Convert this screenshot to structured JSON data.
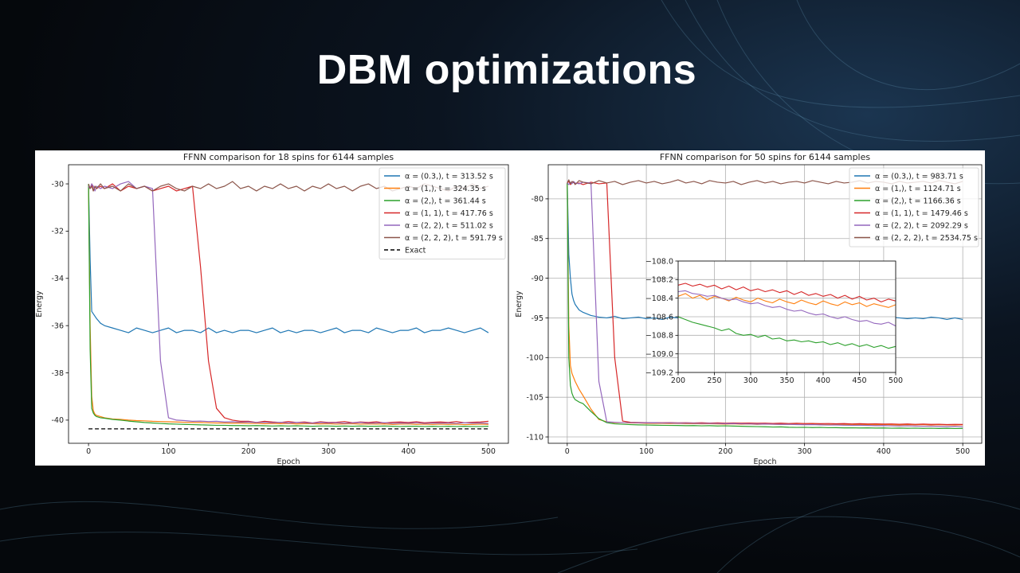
{
  "slide_title": "DBM optimizations",
  "chart_data": [
    {
      "type": "line",
      "title": "FFNN comparison for 18 spins for 6144 samples",
      "xlabel": "Epoch",
      "ylabel": "Energy",
      "xlim": [
        -25,
        525
      ],
      "ylim": [
        -40.98,
        -29.19
      ],
      "xticks": [
        0,
        100,
        200,
        300,
        400,
        500
      ],
      "yticks": [
        -40,
        -38,
        -36,
        -34,
        -32,
        -30
      ],
      "grid": false,
      "legend": "upper right",
      "x": [
        0,
        2,
        4,
        6,
        8,
        10,
        15,
        20,
        30,
        40,
        50,
        60,
        70,
        80,
        90,
        100,
        110,
        120,
        130,
        140,
        150,
        160,
        170,
        180,
        190,
        200,
        210,
        220,
        230,
        240,
        250,
        260,
        270,
        280,
        290,
        300,
        310,
        320,
        330,
        340,
        350,
        360,
        370,
        380,
        390,
        400,
        410,
        420,
        430,
        440,
        450,
        460,
        470,
        480,
        490,
        500
      ],
      "series": [
        {
          "name": "α = (0.3,), t = 313.52 s",
          "color": "#1f77b4",
          "values": [
            -30.0,
            -33.2,
            -35.4,
            -35.5,
            -35.6,
            -35.7,
            -35.9,
            -36.0,
            -36.1,
            -36.2,
            -36.3,
            -36.1,
            -36.2,
            -36.3,
            -36.2,
            -36.1,
            -36.3,
            -36.2,
            -36.2,
            -36.3,
            -36.1,
            -36.3,
            -36.2,
            -36.3,
            -36.2,
            -36.2,
            -36.3,
            -36.2,
            -36.1,
            -36.3,
            -36.2,
            -36.3,
            -36.2,
            -36.2,
            -36.3,
            -36.2,
            -36.1,
            -36.3,
            -36.2,
            -36.2,
            -36.3,
            -36.1,
            -36.2,
            -36.3,
            -36.2,
            -36.2,
            -36.1,
            -36.3,
            -36.2,
            -36.2,
            -36.1,
            -36.2,
            -36.3,
            -36.2,
            -36.1,
            -36.3
          ]
        },
        {
          "name": "α = (1,), t = 324.35 s",
          "color": "#ff7f0e",
          "values": [
            -30.0,
            -36.0,
            -39.0,
            -39.6,
            -39.75,
            -39.8,
            -39.85,
            -39.9,
            -39.95,
            -39.97,
            -40.0,
            -40.02,
            -40.03,
            -40.05,
            -40.06,
            -40.07,
            -40.08,
            -40.09,
            -40.1,
            -40.1,
            -40.11,
            -40.12,
            -40.12,
            -40.13,
            -40.12,
            -40.14,
            -40.13,
            -40.15,
            -40.14,
            -40.15,
            -40.14,
            -40.16,
            -40.15,
            -40.15,
            -40.16,
            -40.15,
            -40.17,
            -40.16,
            -40.15,
            -40.17,
            -40.16,
            -40.17,
            -40.16,
            -40.18,
            -40.17,
            -40.16,
            -40.18,
            -40.17,
            -40.18,
            -40.17,
            -40.18,
            -40.17,
            -40.19,
            -40.18,
            -40.17,
            -40.18
          ]
        },
        {
          "name": "α = (2,), t = 361.44 s",
          "color": "#2ca02c",
          "values": [
            -30.0,
            -37.0,
            -39.5,
            -39.7,
            -39.8,
            -39.85,
            -39.9,
            -39.92,
            -39.97,
            -40.0,
            -40.04,
            -40.07,
            -40.1,
            -40.12,
            -40.14,
            -40.16,
            -40.17,
            -40.18,
            -40.19,
            -40.2,
            -40.21,
            -40.22,
            -40.22,
            -40.23,
            -40.23,
            -40.24,
            -40.23,
            -40.24,
            -40.25,
            -40.24,
            -40.25,
            -40.24,
            -40.25,
            -40.26,
            -40.25,
            -40.25,
            -40.26,
            -40.25,
            -40.26,
            -40.25,
            -40.26,
            -40.26,
            -40.25,
            -40.26,
            -40.27,
            -40.26,
            -40.26,
            -40.27,
            -40.26,
            -40.27,
            -40.26,
            -40.27,
            -40.26,
            -40.27,
            -40.27,
            -40.26
          ]
        },
        {
          "name": "α = (1, 1), t = 417.76 s",
          "color": "#d62728",
          "values": [
            -30.1,
            -30.2,
            -30.0,
            -30.3,
            -30.1,
            -30.2,
            -30.1,
            -30.2,
            -30.0,
            -30.3,
            -30.1,
            -30.2,
            -30.1,
            -30.3,
            -30.2,
            -30.1,
            -30.3,
            -30.2,
            -30.1,
            -33.5,
            -37.5,
            -39.5,
            -39.9,
            -40.0,
            -40.05,
            -40.05,
            -40.1,
            -40.05,
            -40.08,
            -40.1,
            -40.06,
            -40.1,
            -40.08,
            -40.12,
            -40.07,
            -40.1,
            -40.09,
            -40.06,
            -40.11,
            -40.08,
            -40.1,
            -40.07,
            -40.12,
            -40.09,
            -40.08,
            -40.1,
            -40.07,
            -40.11,
            -40.09,
            -40.08,
            -40.1,
            -40.06,
            -40.11,
            -40.09,
            -40.08,
            -40.05
          ]
        },
        {
          "name": "α = (2, 2), t = 511.02 s",
          "color": "#9467bd",
          "values": [
            -30.1,
            -30.2,
            -30.0,
            -30.1,
            -30.3,
            -30.1,
            -30.2,
            -30.1,
            -30.2,
            -30.0,
            -29.9,
            -30.2,
            -30.1,
            -30.2,
            -37.5,
            -39.9,
            -40.0,
            -40.02,
            -40.05,
            -40.04,
            -40.06,
            -40.05,
            -40.08,
            -40.07,
            -40.09,
            -40.08,
            -40.1,
            -40.09,
            -40.11,
            -40.09,
            -40.12,
            -40.1,
            -40.11,
            -40.13,
            -40.1,
            -40.12,
            -40.11,
            -40.13,
            -40.12,
            -40.1,
            -40.13,
            -40.12,
            -40.11,
            -40.14,
            -40.12,
            -40.13,
            -40.11,
            -40.14,
            -40.12,
            -40.13,
            -40.12,
            -40.14,
            -40.11,
            -40.13,
            -40.12,
            -40.14
          ]
        },
        {
          "name": "α = (2, 2, 2), t = 591.79 s",
          "color": "#8c564b",
          "values": [
            -30.0,
            -30.2,
            -30.1,
            -30.3,
            -30.1,
            -30.2,
            -30.0,
            -30.2,
            -30.1,
            -30.3,
            -30.0,
            -30.2,
            -30.1,
            -30.3,
            -30.1,
            -30.0,
            -30.2,
            -30.3,
            -30.1,
            -30.2,
            -30.0,
            -30.2,
            -30.1,
            -29.9,
            -30.2,
            -30.1,
            -30.3,
            -30.1,
            -30.2,
            -30.0,
            -30.2,
            -30.1,
            -30.3,
            -30.1,
            -30.2,
            -30.0,
            -30.2,
            -30.1,
            -30.3,
            -30.1,
            -30.0,
            -30.2,
            -30.1,
            -30.3,
            -30.2,
            -30.1,
            -30.2,
            -30.0,
            -30.1,
            -30.2,
            -30.3,
            -30.1,
            -30.2,
            -30.0,
            -30.2,
            -30.1
          ]
        },
        {
          "name": "Exact",
          "color": "#000000",
          "dash": true,
          "x": [
            0,
            500
          ],
          "values": [
            -40.37,
            -40.37
          ]
        }
      ]
    },
    {
      "type": "line",
      "title": "FFNN comparison for 50 spins for 6144 samples",
      "xlabel": "Epoch",
      "ylabel": "Energy",
      "xlim": [
        -24,
        524
      ],
      "ylim": [
        -110.8,
        -75.7
      ],
      "xticks": [
        0,
        100,
        200,
        300,
        400,
        500
      ],
      "yticks": [
        -110,
        -105,
        -100,
        -95,
        -90,
        -85,
        -80
      ],
      "grid": true,
      "legend": "upper right",
      "x": [
        0,
        2,
        4,
        6,
        8,
        10,
        15,
        20,
        30,
        40,
        50,
        60,
        70,
        80,
        90,
        100,
        110,
        120,
        130,
        140,
        150,
        160,
        170,
        180,
        190,
        200,
        210,
        220,
        230,
        240,
        250,
        260,
        270,
        280,
        290,
        300,
        310,
        320,
        330,
        340,
        350,
        360,
        370,
        380,
        390,
        400,
        410,
        420,
        430,
        440,
        450,
        460,
        470,
        480,
        490,
        500
      ],
      "series": [
        {
          "name": "α = (0.3,), t = 983.71 s",
          "color": "#1f77b4",
          "values": [
            -78.0,
            -87.0,
            -90.0,
            -92.0,
            -92.8,
            -93.3,
            -94.0,
            -94.3,
            -94.7,
            -94.9,
            -95.0,
            -94.8,
            -95.1,
            -95.0,
            -94.9,
            -95.1,
            -95.0,
            -95.2,
            -94.9,
            -95.0,
            -95.1,
            -95.0,
            -94.9,
            -95.1,
            -95.0,
            -95.2,
            -95.0,
            -94.9,
            -95.1,
            -95.0,
            -95.1,
            -94.9,
            -95.0,
            -95.2,
            -95.0,
            -95.1,
            -94.9,
            -95.0,
            -95.1,
            -95.0,
            -94.9,
            -95.1,
            -95.0,
            -95.2,
            -95.0,
            -95.1,
            -94.9,
            -95.0,
            -95.1,
            -95.0,
            -95.1,
            -94.9,
            -95.0,
            -95.2,
            -95.0,
            -95.2
          ]
        },
        {
          "name": "α = (1,), t = 1124.71 s",
          "color": "#ff7f0e",
          "values": [
            -78.0,
            -96.0,
            -101.0,
            -102.0,
            -102.5,
            -103.0,
            -104.0,
            -104.8,
            -106.5,
            -107.8,
            -108.1,
            -108.2,
            -108.2,
            -108.25,
            -108.25,
            -108.3,
            -108.28,
            -108.3,
            -108.32,
            -108.3,
            -108.33,
            -108.32,
            -108.35,
            -108.33,
            -108.36,
            -108.38,
            -108.35,
            -108.4,
            -108.37,
            -108.42,
            -108.38,
            -108.4,
            -108.43,
            -108.39,
            -108.42,
            -108.44,
            -108.4,
            -108.43,
            -108.45,
            -108.41,
            -108.44,
            -108.46,
            -108.42,
            -108.45,
            -108.47,
            -108.43,
            -108.46,
            -108.48,
            -108.44,
            -108.47,
            -108.45,
            -108.49,
            -108.46,
            -108.48,
            -108.5,
            -108.47
          ]
        },
        {
          "name": "α = (2,), t = 1166.36 s",
          "color": "#2ca02c",
          "values": [
            -78.0,
            -100.0,
            -103.5,
            -104.5,
            -105.0,
            -105.3,
            -105.6,
            -105.8,
            -106.8,
            -107.7,
            -108.2,
            -108.35,
            -108.4,
            -108.45,
            -108.48,
            -108.5,
            -108.52,
            -108.54,
            -108.55,
            -108.56,
            -108.58,
            -108.57,
            -108.6,
            -108.58,
            -108.62,
            -108.6,
            -108.63,
            -108.66,
            -108.68,
            -108.7,
            -108.72,
            -108.75,
            -108.73,
            -108.78,
            -108.8,
            -108.79,
            -108.82,
            -108.8,
            -108.84,
            -108.83,
            -108.86,
            -108.85,
            -108.87,
            -108.86,
            -108.88,
            -108.87,
            -108.9,
            -108.88,
            -108.91,
            -108.89,
            -108.92,
            -108.9,
            -108.93,
            -108.91,
            -108.94,
            -108.92
          ]
        },
        {
          "name": "α = (1, 1), t = 1479.46 s",
          "color": "#d62728",
          "values": [
            -78.0,
            -77.8,
            -78.2,
            -78.0,
            -77.9,
            -78.1,
            -78.0,
            -78.2,
            -77.9,
            -78.1,
            -78.0,
            -100.0,
            -108.0,
            -108.15,
            -108.18,
            -108.2,
            -108.2,
            -108.22,
            -108.2,
            -108.23,
            -108.22,
            -108.24,
            -108.22,
            -108.25,
            -108.23,
            -108.26,
            -108.24,
            -108.27,
            -108.25,
            -108.28,
            -108.26,
            -108.3,
            -108.27,
            -108.31,
            -108.28,
            -108.32,
            -108.3,
            -108.33,
            -108.31,
            -108.34,
            -108.32,
            -108.36,
            -108.33,
            -108.37,
            -108.35,
            -108.38,
            -108.36,
            -108.4,
            -108.37,
            -108.41,
            -108.38,
            -108.42,
            -108.4,
            -108.44,
            -108.41,
            -108.43
          ]
        },
        {
          "name": "α = (2, 2), t = 2092.29 s",
          "color": "#9467bd",
          "values": [
            -78.0,
            -78.2,
            -77.9,
            -78.1,
            -77.8,
            -78.0,
            -78.1,
            -77.9,
            -78.0,
            -103.0,
            -108.1,
            -108.15,
            -108.2,
            -108.2,
            -108.22,
            -108.23,
            -108.22,
            -108.25,
            -108.24,
            -108.27,
            -108.26,
            -108.28,
            -108.3,
            -108.29,
            -108.31,
            -108.33,
            -108.32,
            -108.35,
            -108.36,
            -108.38,
            -108.37,
            -108.4,
            -108.42,
            -108.41,
            -108.44,
            -108.46,
            -108.45,
            -108.48,
            -108.5,
            -108.49,
            -108.52,
            -108.54,
            -108.53,
            -108.56,
            -108.58,
            -108.57,
            -108.6,
            -108.62,
            -108.6,
            -108.63,
            -108.65,
            -108.64,
            -108.67,
            -108.68,
            -108.66,
            -108.7
          ]
        },
        {
          "name": "α = (2, 2, 2), t = 2534.75 s",
          "color": "#8c564b",
          "values": [
            -78.0,
            -77.6,
            -78.1,
            -77.8,
            -77.9,
            -78.2,
            -77.7,
            -77.9,
            -78.1,
            -77.7,
            -78.0,
            -77.8,
            -78.2,
            -77.9,
            -77.7,
            -78.0,
            -77.8,
            -78.1,
            -77.9,
            -77.6,
            -78.0,
            -77.8,
            -78.1,
            -77.7,
            -77.9,
            -78.0,
            -77.8,
            -78.2,
            -77.9,
            -77.7,
            -78.0,
            -77.8,
            -78.1,
            -77.9,
            -77.8,
            -78.0,
            -77.7,
            -77.9,
            -78.1,
            -77.8,
            -78.0,
            -77.9,
            -77.7,
            -78.0,
            -77.8,
            -77.9,
            -78.1,
            -77.8,
            -78.0,
            -77.9,
            -77.8,
            -78.0,
            -77.7,
            -77.9,
            -78.1,
            -77.8
          ]
        }
      ],
      "inset": {
        "xlim": [
          200,
          500
        ],
        "ylim": [
          -109.2,
          -108.0
        ],
        "xticks": [
          200,
          250,
          300,
          350,
          400,
          450,
          500
        ],
        "yticks": [
          {
            "value": -109.2,
            "label": "−109.2"
          },
          {
            "value": -109.0,
            "label": "−109.0"
          },
          {
            "value": -108.8,
            "label": "−108.8"
          },
          {
            "value": -108.6,
            "label": "−108.6"
          },
          {
            "value": -108.4,
            "label": "−108.4"
          },
          {
            "value": -108.2,
            "label": "−108.2"
          },
          {
            "value": -108.0,
            "label": "−108.0"
          }
        ],
        "grid": true
      }
    }
  ]
}
